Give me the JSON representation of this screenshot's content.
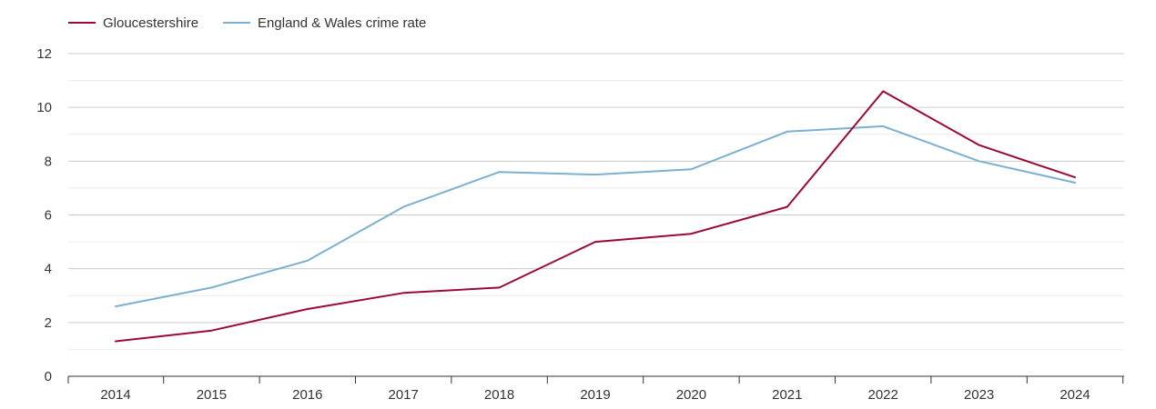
{
  "chart_data": {
    "type": "line",
    "title": "",
    "xlabel": "",
    "ylabel": "",
    "x": [
      "2014",
      "2015",
      "2016",
      "2017",
      "2018",
      "2019",
      "2020",
      "2021",
      "2022",
      "2023",
      "2024"
    ],
    "ylim": [
      0,
      12
    ],
    "yticks": [
      0,
      2,
      4,
      6,
      8,
      10,
      12
    ],
    "grid": true,
    "legend_position": "top-left",
    "series": [
      {
        "name": "Gloucestershire",
        "color": "#9b0a33",
        "values": [
          1.3,
          1.7,
          2.5,
          3.1,
          3.3,
          5.0,
          5.3,
          6.3,
          10.6,
          8.6,
          7.4
        ]
      },
      {
        "name": "England & Wales crime rate",
        "color": "#7bb0d0",
        "values": [
          2.6,
          3.3,
          4.3,
          6.3,
          7.6,
          7.5,
          7.7,
          9.1,
          9.3,
          8.0,
          7.2
        ]
      }
    ]
  }
}
